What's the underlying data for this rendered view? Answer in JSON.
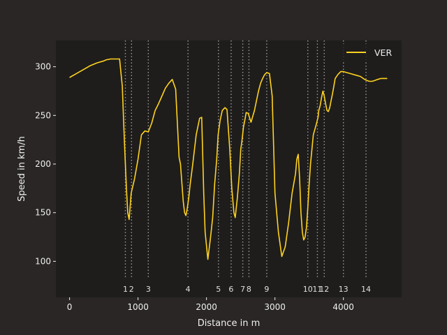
{
  "chart_data": {
    "type": "line",
    "title": "",
    "xlabel": "Distance in m",
    "ylabel": "Speed in km/h",
    "xlim": [
      -200,
      4850
    ],
    "ylim": [
      63,
      327
    ],
    "x_ticks": [
      0,
      1000,
      2000,
      3000,
      4000
    ],
    "y_ticks": [
      100,
      150,
      200,
      250,
      300
    ],
    "legend": {
      "position": "top-right"
    },
    "colors": {
      "figure_bg": "#292625",
      "plot_bg": "#1e1d1c",
      "line": "#ffd21f",
      "text": "#f0f0f0",
      "corner_line": "#9a9a9a"
    },
    "corners": [
      {
        "number": "1",
        "distance": 815
      },
      {
        "number": "2",
        "distance": 905
      },
      {
        "number": "3",
        "distance": 1150
      },
      {
        "number": "4",
        "distance": 1730
      },
      {
        "number": "5",
        "distance": 2175
      },
      {
        "number": "6",
        "distance": 2360
      },
      {
        "number": "7",
        "distance": 2530
      },
      {
        "number": "8",
        "distance": 2620
      },
      {
        "number": "9",
        "distance": 2880
      },
      {
        "number": "10",
        "distance": 3480
      },
      {
        "number": "11",
        "distance": 3620
      },
      {
        "number": "12",
        "distance": 3720
      },
      {
        "number": "13",
        "distance": 4000
      },
      {
        "number": "14",
        "distance": 4330
      }
    ],
    "series": [
      {
        "name": "VER",
        "x": [
          0,
          100,
          200,
          300,
          400,
          500,
          530,
          600,
          660,
          700,
          730,
          770,
          800,
          830,
          850,
          870,
          900,
          950,
          1000,
          1050,
          1100,
          1150,
          1200,
          1250,
          1300,
          1350,
          1400,
          1450,
          1500,
          1550,
          1600,
          1620,
          1660,
          1680,
          1700,
          1720,
          1740,
          1760,
          1800,
          1850,
          1900,
          1930,
          1960,
          1980,
          2020,
          2060,
          2090,
          2120,
          2150,
          2170,
          2200,
          2230,
          2270,
          2300,
          2340,
          2370,
          2400,
          2420,
          2450,
          2480,
          2500,
          2520,
          2540,
          2560,
          2580,
          2610,
          2650,
          2700,
          2730,
          2760,
          2790,
          2820,
          2850,
          2880,
          2920,
          2960,
          3000,
          3050,
          3100,
          3150,
          3200,
          3250,
          3300,
          3320,
          3340,
          3360,
          3380,
          3400,
          3420,
          3440,
          3460,
          3480,
          3500,
          3520,
          3540,
          3560,
          3600,
          3630,
          3640,
          3660,
          3680,
          3700,
          3720,
          3740,
          3760,
          3780,
          3800,
          3820,
          3840,
          3860,
          3880,
          3920,
          3960,
          4000,
          4050,
          4100,
          4150,
          4200,
          4250,
          4270,
          4290,
          4310,
          4340,
          4380,
          4420,
          4460,
          4500,
          4550,
          4600,
          4640
        ],
        "y": [
          289,
          293,
          297,
          301,
          304,
          306,
          307,
          308,
          308,
          308,
          308,
          280,
          225,
          175,
          150,
          143,
          170,
          185,
          205,
          230,
          234,
          233,
          242,
          255,
          262,
          270,
          278,
          283,
          287,
          277,
          207,
          200,
          162,
          150,
          147,
          155,
          165,
          178,
          200,
          230,
          247,
          248,
          170,
          130,
          102,
          125,
          145,
          180,
          205,
          230,
          245,
          255,
          258,
          256,
          215,
          175,
          150,
          145,
          165,
          190,
          215,
          225,
          238,
          245,
          253,
          252,
          243,
          255,
          265,
          275,
          283,
          288,
          292,
          294,
          293,
          270,
          170,
          130,
          105,
          115,
          140,
          170,
          190,
          205,
          210,
          185,
          150,
          130,
          122,
          125,
          135,
          155,
          180,
          200,
          215,
          230,
          240,
          248,
          255,
          260,
          268,
          275,
          270,
          262,
          255,
          254,
          258,
          265,
          272,
          280,
          288,
          292,
          295,
          295,
          294,
          293,
          292,
          291,
          290,
          289,
          288,
          287,
          286,
          285,
          285,
          286,
          287,
          288,
          288,
          288
        ]
      }
    ]
  }
}
